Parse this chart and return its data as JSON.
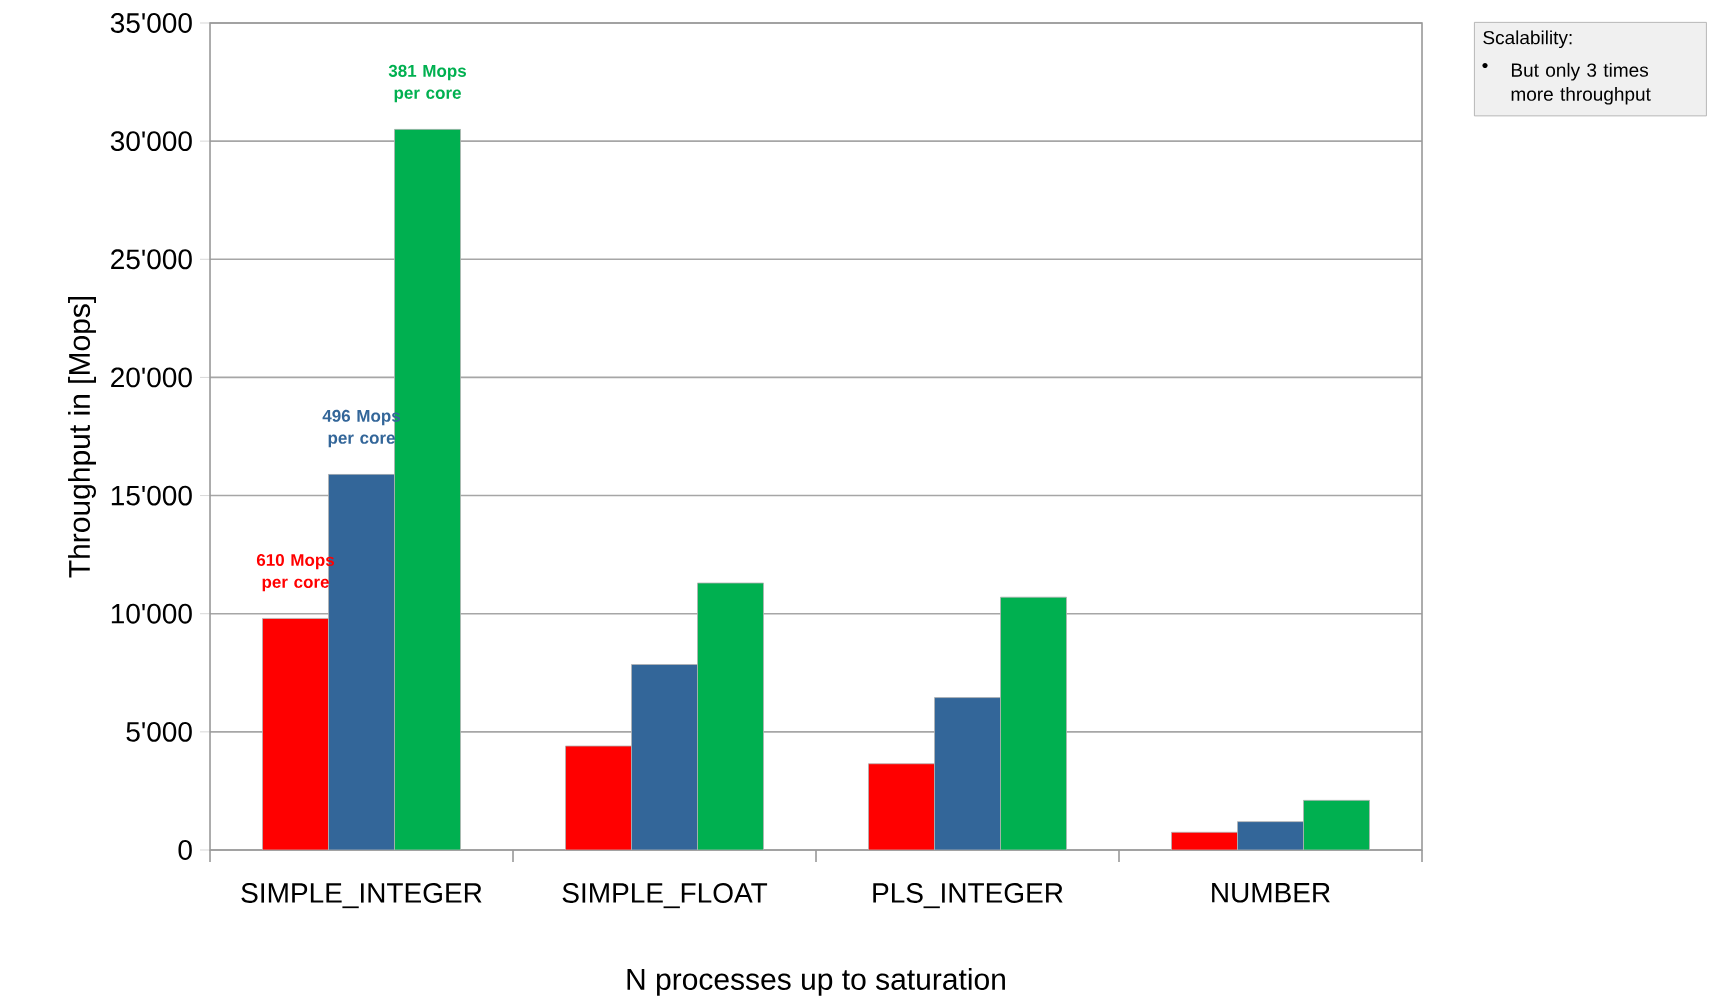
{
  "chart_data": {
    "type": "bar",
    "xlabel": "N processes up to saturation",
    "ylabel": "Throughput in [Mops]",
    "categories": [
      "SIMPLE_INTEGER",
      "SIMPLE_FLOAT",
      "PLS_INTEGER",
      "NUMBER"
    ],
    "series": [
      {
        "color": "#ff0000",
        "values": [
          9800,
          4400,
          3650,
          750
        ]
      },
      {
        "color": "#336699",
        "values": [
          15900,
          7850,
          6450,
          1200
        ]
      },
      {
        "color": "#00b050",
        "values": [
          30500,
          11300,
          10700,
          2100
        ]
      }
    ],
    "ylim": [
      0,
      35000
    ],
    "yticks": [
      {
        "value": 0,
        "label": "0"
      },
      {
        "value": 5000,
        "label": "5'000"
      },
      {
        "value": 10000,
        "label": "10'000"
      },
      {
        "value": 15000,
        "label": "15'000"
      },
      {
        "value": 20000,
        "label": "20'000"
      },
      {
        "value": 25000,
        "label": "25'000"
      },
      {
        "value": 30000,
        "label": "30'000"
      },
      {
        "value": 35000,
        "label": "35'000"
      }
    ],
    "grid": "y",
    "annotations": [
      "610 Mops per core",
      "496 Mops per core",
      "381 Mops per core",
      "Scalability:",
      "But only 3 times more throughput"
    ]
  }
}
